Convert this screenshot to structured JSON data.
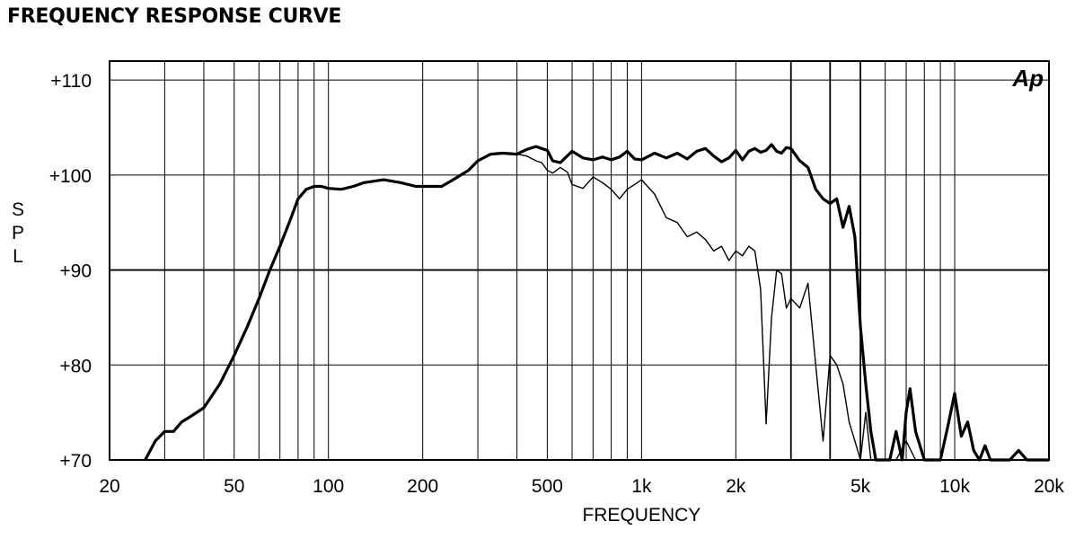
{
  "title": "FREQUENCY RESPONSE CURVE",
  "chart_data": {
    "type": "line",
    "title": "FREQUENCY RESPONSE CURVE",
    "xlabel": "FREQUENCY",
    "ylabel": "S P L",
    "xscale": "log",
    "xlim": [
      20,
      20000
    ],
    "ylim": [
      70,
      112
    ],
    "x_ticks": [
      {
        "value": 20,
        "label": "20"
      },
      {
        "value": 50,
        "label": "50"
      },
      {
        "value": 100,
        "label": "100"
      },
      {
        "value": 200,
        "label": "200"
      },
      {
        "value": 500,
        "label": "500"
      },
      {
        "value": 1000,
        "label": "1k"
      },
      {
        "value": 2000,
        "label": "2k"
      },
      {
        "value": 5000,
        "label": "5k"
      },
      {
        "value": 10000,
        "label": "10k"
      },
      {
        "value": 20000,
        "label": "20k"
      }
    ],
    "y_ticks": [
      {
        "value": 70,
        "label": "+70"
      },
      {
        "value": 80,
        "label": "+80"
      },
      {
        "value": 90,
        "label": "+90"
      },
      {
        "value": 100,
        "label": "+100"
      },
      {
        "value": 110,
        "label": "+110"
      }
    ],
    "grid": true,
    "logo": "Ap",
    "series": [
      {
        "style": "thick",
        "x": [
          26,
          28,
          30,
          32,
          34,
          36,
          40,
          45,
          50,
          55,
          60,
          65,
          70,
          75,
          80,
          85,
          90,
          95,
          100,
          110,
          120,
          130,
          150,
          170,
          190,
          210,
          230,
          250,
          280,
          300,
          330,
          360,
          400,
          430,
          460,
          480,
          500,
          520,
          550,
          600,
          650,
          700,
          750,
          800,
          850,
          900,
          950,
          1000,
          1100,
          1200,
          1300,
          1400,
          1500,
          1600,
          1700,
          1800,
          1900,
          2000,
          2100,
          2200,
          2300,
          2400,
          2500,
          2600,
          2700,
          2800,
          2900,
          3000,
          3200,
          3400,
          3600,
          3800,
          4000,
          4200,
          4400,
          4600,
          4800,
          5000,
          5200,
          5400,
          5600,
          5800,
          6000,
          6200,
          6500,
          6800,
          7000,
          7200,
          7500,
          8000,
          8500,
          9000,
          9500,
          10000,
          10500,
          11000,
          11500,
          12000,
          12500,
          13000,
          14000,
          15000,
          16000,
          17000,
          18000,
          19000,
          20000
        ],
        "y": [
          70,
          72,
          73,
          73,
          74,
          74.5,
          75.5,
          78,
          81,
          84,
          87,
          90,
          92.5,
          95,
          97.5,
          98.5,
          98.8,
          98.8,
          98.6,
          98.5,
          98.8,
          99.2,
          99.5,
          99.2,
          98.8,
          98.8,
          98.8,
          99.5,
          100.5,
          101.5,
          102.2,
          102.3,
          102.2,
          102.7,
          103,
          102.8,
          102.6,
          101.5,
          101.3,
          102.5,
          101.8,
          101.6,
          101.9,
          101.6,
          101.9,
          102.5,
          101.7,
          101.6,
          102.3,
          101.8,
          102.3,
          101.7,
          102.5,
          102.8,
          102,
          101.4,
          101.8,
          102.6,
          101.6,
          102.5,
          102.8,
          102.4,
          102.6,
          103.2,
          102.5,
          102.3,
          102.9,
          102.8,
          101.5,
          100.8,
          98.5,
          97.5,
          97,
          97.5,
          94.5,
          96.7,
          93.5,
          84,
          78,
          73,
          70,
          70,
          70,
          70,
          73,
          70,
          75,
          77.5,
          73,
          70,
          70,
          70,
          73.5,
          77,
          72.5,
          74,
          71,
          70,
          71.5,
          70,
          70,
          70,
          71,
          70,
          70,
          70,
          70
        ]
      },
      {
        "style": "thin",
        "x": [
          400,
          430,
          460,
          480,
          500,
          520,
          550,
          580,
          600,
          650,
          700,
          750,
          800,
          850,
          900,
          950,
          1000,
          1100,
          1200,
          1300,
          1400,
          1500,
          1600,
          1700,
          1800,
          1900,
          2000,
          2100,
          2200,
          2300,
          2400,
          2500,
          2600,
          2700,
          2800,
          2900,
          3000,
          3200,
          3400,
          3600,
          3800,
          4000,
          4200,
          4400,
          4600,
          4800,
          5000,
          5200,
          5400,
          5600,
          5800,
          6000,
          6500,
          7000,
          7500
        ],
        "y": [
          102.2,
          102,
          101.5,
          101.3,
          100.5,
          100.2,
          100.8,
          100.3,
          99,
          98.6,
          99.8,
          99.2,
          98.5,
          97.5,
          98.5,
          99,
          99.5,
          98,
          95.5,
          95,
          93.5,
          94,
          93.2,
          92,
          92.5,
          91,
          92,
          91.5,
          92.5,
          92,
          88,
          73.8,
          85,
          90,
          89.6,
          86,
          87,
          86,
          88.6,
          80,
          72,
          81,
          80,
          78,
          74,
          72,
          70,
          75,
          70,
          70,
          70,
          70,
          70,
          72,
          70
        ]
      }
    ]
  }
}
